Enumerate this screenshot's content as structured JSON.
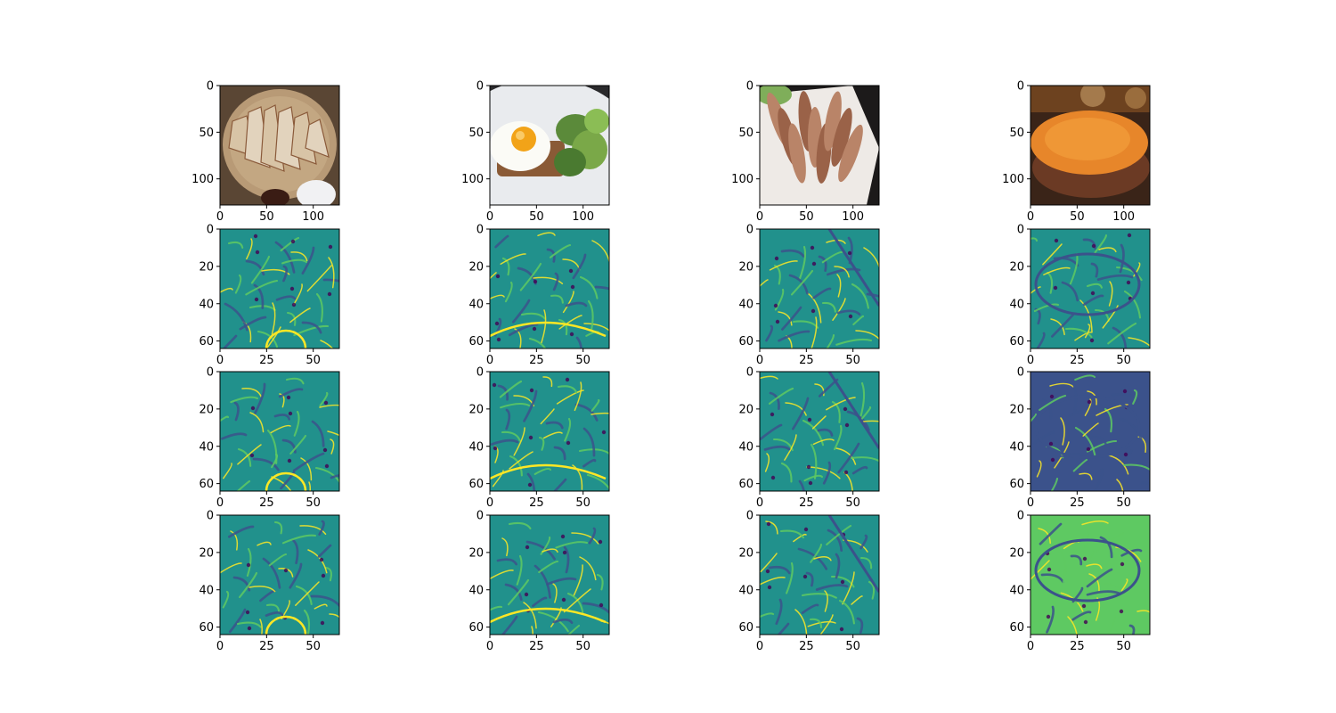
{
  "chart_data": {
    "type": "heatmap",
    "layout": {
      "rows": 4,
      "cols": 4
    },
    "image_grid": {
      "image_size": 128,
      "feature_size": 64,
      "colormap": "viridis",
      "row_contents": [
        "RGB food photograph",
        "feature map",
        "feature map",
        "feature map"
      ],
      "photo_subjects": [
        "quesadilla on a board",
        "fried egg on toast with salad",
        "grilled calamari on a white plate",
        "bowl of orange soup"
      ]
    },
    "photo_axes": {
      "xlim": [
        0,
        128
      ],
      "ylim": [
        128,
        0
      ],
      "xticks": [
        0,
        50,
        100
      ],
      "yticks": [
        0,
        50,
        100
      ],
      "xtick_labels": [
        "0",
        "50",
        "100"
      ],
      "ytick_labels": [
        "0",
        "50",
        "100"
      ]
    },
    "feature_axes": {
      "xlim": [
        0,
        64
      ],
      "ylim": [
        64,
        0
      ],
      "xticks": [
        0,
        25,
        50
      ],
      "yticks": [
        0,
        20,
        40,
        60
      ],
      "xtick_labels": [
        "0",
        "25",
        "50"
      ],
      "ytick_labels": [
        "0",
        "20",
        "40",
        "60"
      ]
    },
    "colors": {
      "viridis": [
        "#440154",
        "#3b528b",
        "#21918c",
        "#5ec962",
        "#fde725"
      ]
    }
  }
}
